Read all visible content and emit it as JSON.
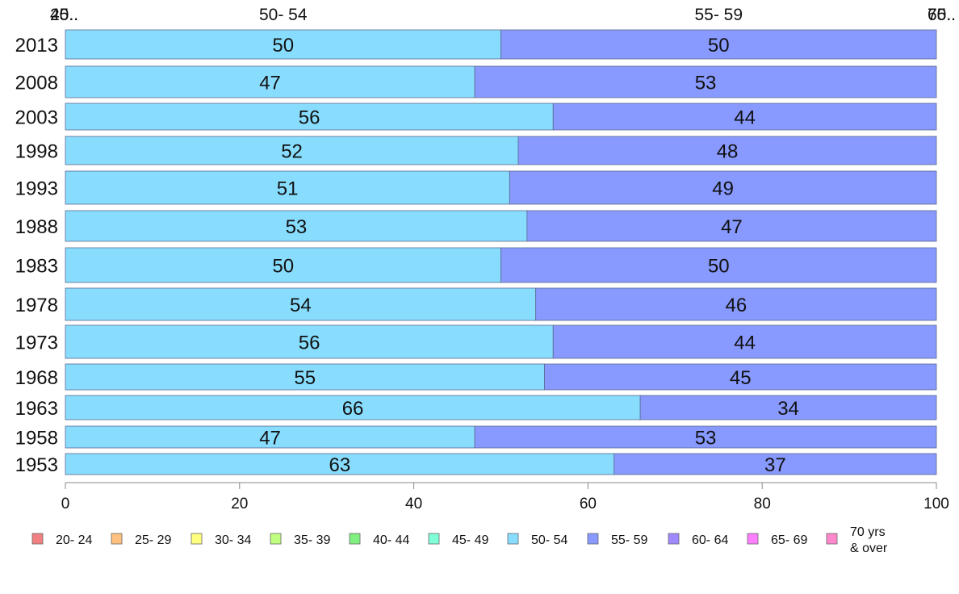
{
  "chart_data": {
    "type": "bar",
    "orientation": "horizontal",
    "stacked": true,
    "categories": [
      "2013",
      "2008",
      "2003",
      "1998",
      "1993",
      "1988",
      "1983",
      "1978",
      "1973",
      "1968",
      "1963",
      "1958",
      "1953"
    ],
    "series": [
      {
        "name": "20- 24",
        "color": "#f28080",
        "values": [
          0,
          0,
          0,
          0,
          0,
          0,
          0,
          0,
          0,
          0,
          0,
          0,
          0
        ]
      },
      {
        "name": "25- 29",
        "color": "#ffc080",
        "values": [
          0,
          0,
          0,
          0,
          0,
          0,
          0,
          0,
          0,
          0,
          0,
          0,
          0
        ]
      },
      {
        "name": "30- 34",
        "color": "#ffff80",
        "values": [
          0,
          0,
          0,
          0,
          0,
          0,
          0,
          0,
          0,
          0,
          0,
          0,
          0
        ]
      },
      {
        "name": "35- 39",
        "color": "#c0ff80",
        "values": [
          0,
          0,
          0,
          0,
          0,
          0,
          0,
          0,
          0,
          0,
          0,
          0,
          0
        ]
      },
      {
        "name": "40- 44",
        "color": "#80f080",
        "values": [
          0,
          0,
          0,
          0,
          0,
          0,
          0,
          0,
          0,
          0,
          0,
          0,
          0
        ]
      },
      {
        "name": "45- 49",
        "color": "#80ffd8",
        "values": [
          0,
          0,
          0,
          0,
          0,
          0,
          0,
          0,
          0,
          0,
          0,
          0,
          0
        ]
      },
      {
        "name": "50- 54",
        "color": "#88ddff",
        "values": [
          50,
          47,
          56,
          52,
          51,
          53,
          50,
          54,
          56,
          55,
          66,
          47,
          63
        ]
      },
      {
        "name": "55- 59",
        "color": "#8899ff",
        "values": [
          50,
          53,
          44,
          48,
          49,
          47,
          50,
          46,
          44,
          45,
          34,
          53,
          37
        ]
      },
      {
        "name": "60- 64",
        "color": "#a088ff",
        "values": [
          0,
          0,
          0,
          0,
          0,
          0,
          0,
          0,
          0,
          0,
          0,
          0,
          0
        ]
      },
      {
        "name": "65- 69",
        "color": "#ff80ff",
        "values": [
          0,
          0,
          0,
          0,
          0,
          0,
          0,
          0,
          0,
          0,
          0,
          0,
          0
        ]
      },
      {
        "name": "70 yrs & over",
        "color": "#ff88cc",
        "values": [
          0,
          0,
          0,
          0,
          0,
          0,
          0,
          0,
          0,
          0,
          0,
          0,
          0
        ]
      }
    ],
    "top_labels": [
      "20..",
      "45..",
      "50- 54",
      "55- 59",
      "65..",
      "70.."
    ],
    "xlim": [
      0,
      100
    ],
    "xticks": [
      "0",
      "20",
      "40",
      "60",
      "80",
      "100"
    ],
    "title": "",
    "xlabel": "",
    "ylabel": "",
    "grid": false,
    "legend_position": "bottom"
  }
}
